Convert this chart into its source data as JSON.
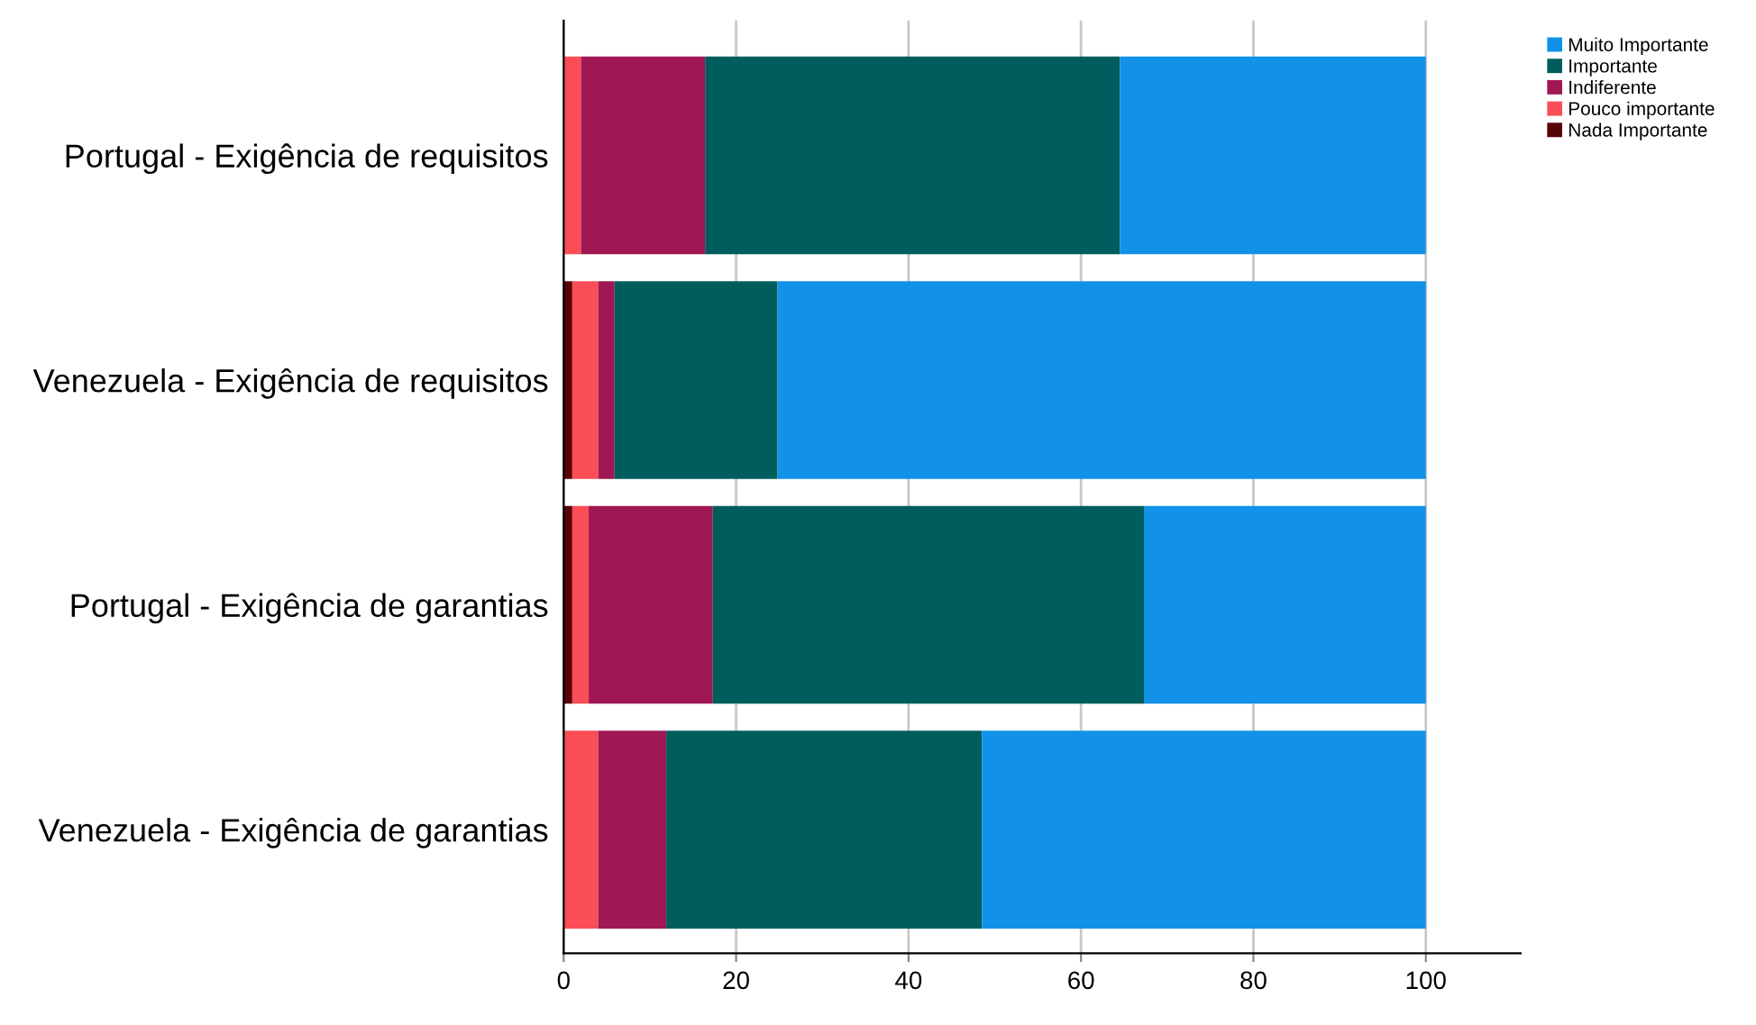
{
  "chart_data": {
    "type": "bar",
    "orientation": "horizontal",
    "stacked": true,
    "categories": [
      "Portugal - Exigência de requisitos",
      "Venezuela - Exigência de requisitos",
      "Portugal - Exigência de garantias",
      "Venezuela - Exigência de garantias"
    ],
    "series": [
      {
        "name": "Nada Importante",
        "color": "#570408",
        "values": [
          0,
          1.0,
          1.0,
          0
        ]
      },
      {
        "name": "Pouco importante",
        "color": "#fa4d56",
        "values": [
          2.0,
          3.0,
          1.9,
          4.0
        ]
      },
      {
        "name": "Indiferente",
        "color": "#9f1853",
        "values": [
          14.4,
          1.9,
          14.4,
          7.9
        ]
      },
      {
        "name": "Importante",
        "color": "#005d5d",
        "values": [
          48.1,
          18.9,
          50.0,
          36.6
        ]
      },
      {
        "name": "Muito Importante",
        "color": "#1192e8",
        "values": [
          35.5,
          75.2,
          32.7,
          51.5
        ]
      }
    ],
    "xlim": [
      0,
      111
    ],
    "xticks": [
      0,
      20,
      40,
      60,
      80,
      100
    ],
    "grid": "x",
    "legend": "top right"
  }
}
